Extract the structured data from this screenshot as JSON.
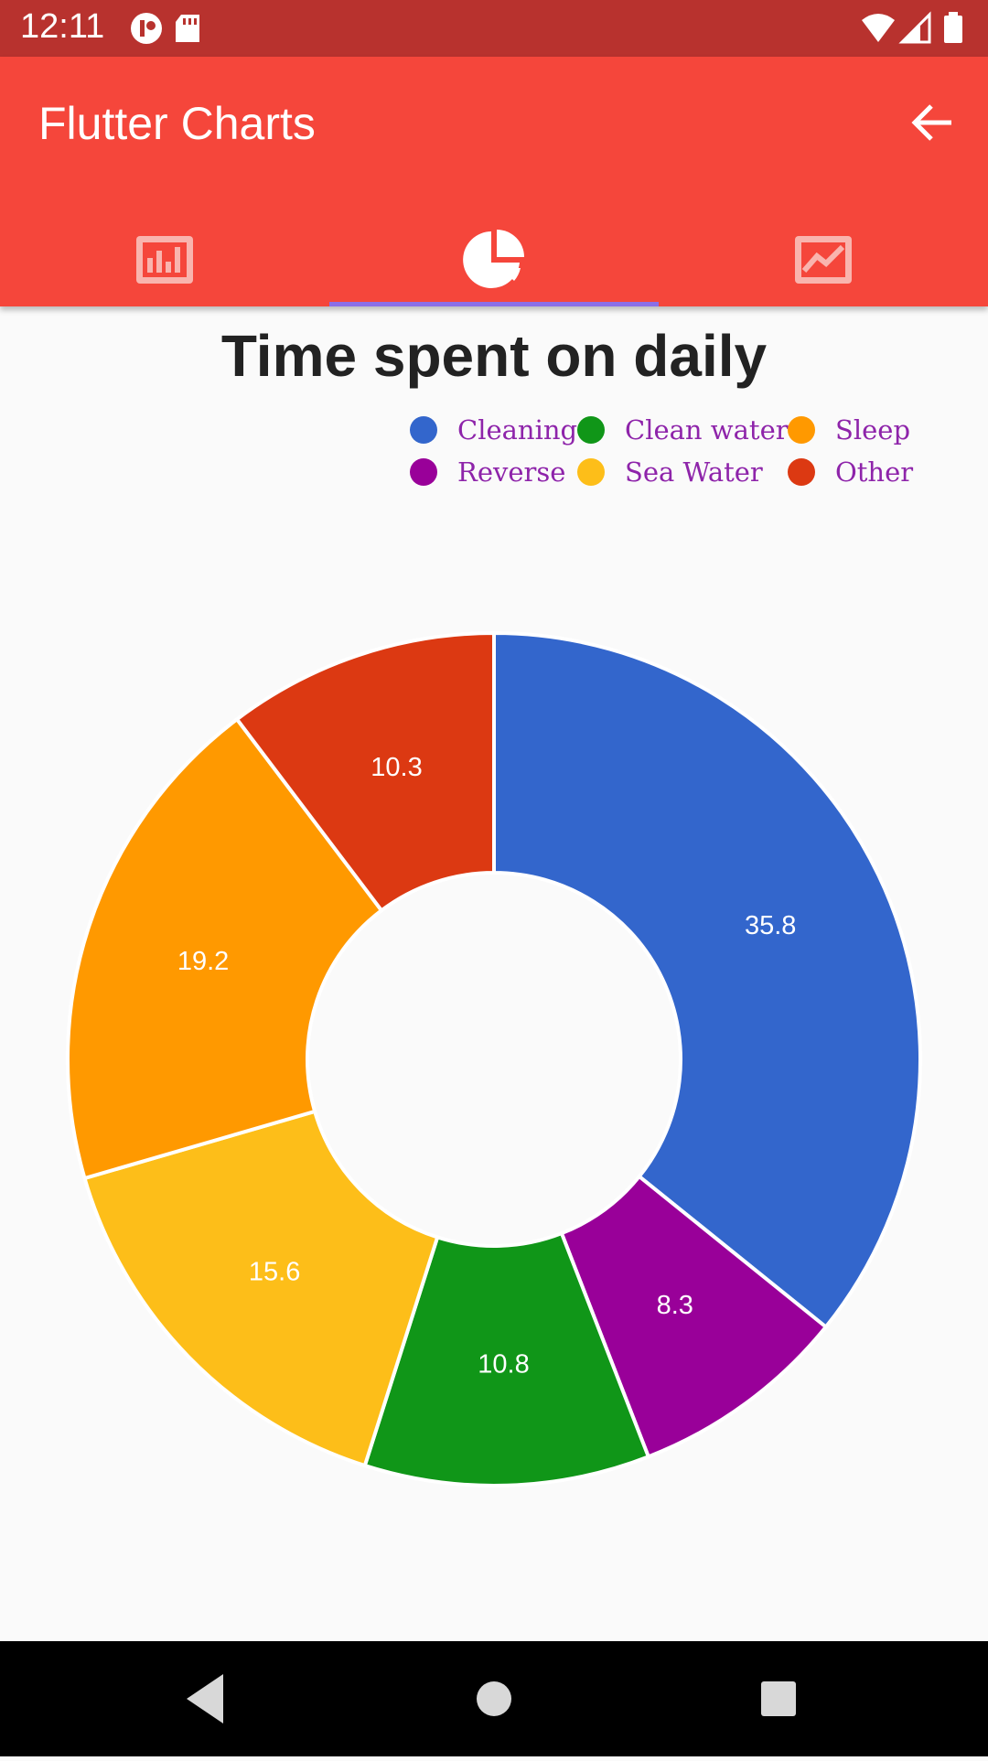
{
  "status_bar": {
    "time": "12:11"
  },
  "app_bar": {
    "title": "Flutter Charts",
    "tabs": [
      {
        "icon": "bar-chart-icon",
        "selected": false
      },
      {
        "icon": "pie-chart-icon",
        "selected": true
      },
      {
        "icon": "line-chart-icon",
        "selected": false
      }
    ]
  },
  "chart_data": {
    "type": "pie",
    "title": "Time spent on daily",
    "donut": true,
    "legend_position": "top-right",
    "categories": [
      "Cleaning",
      "Reverse",
      "Clean water",
      "Sea Water",
      "Sleep",
      "Other"
    ],
    "values": [
      35.8,
      8.3,
      10.8,
      15.6,
      19.2,
      10.3
    ],
    "colors": [
      "#3366cc",
      "#990099",
      "#109618",
      "#fdbe19",
      "#ff9900",
      "#dc3912"
    ]
  },
  "legend": [
    {
      "label": "Cleaning",
      "color": "#3366cc"
    },
    {
      "label": "Clean water",
      "color": "#109618"
    },
    {
      "label": "Sleep",
      "color": "#ff9900"
    },
    {
      "label": "Reverse",
      "color": "#990099"
    },
    {
      "label": "Sea Water",
      "color": "#fdbe19"
    },
    {
      "label": "Other",
      "color": "#dc3912"
    }
  ]
}
